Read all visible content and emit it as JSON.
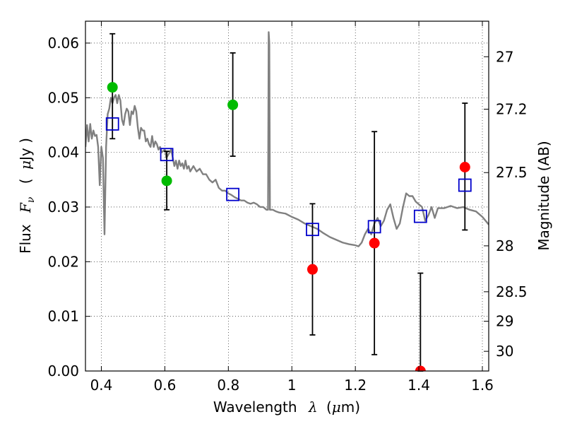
{
  "chart_data": {
    "type": "scatter",
    "xlabel_parts": [
      "Wavelength",
      "λ",
      "(",
      "μ",
      "m)"
    ],
    "ylabel_parts": [
      "Flux",
      "F",
      "ν",
      "(",
      "μ",
      "Jy )"
    ],
    "y2label": "Magnitude (AB)",
    "xlim": [
      0.35,
      1.62
    ],
    "ylim": [
      0.0,
      0.064
    ],
    "grid": true,
    "x_ticks": [
      {
        "value": 0.4,
        "label": "0.4"
      },
      {
        "value": 0.6,
        "label": "0.6"
      },
      {
        "value": 0.8,
        "label": "0.8"
      },
      {
        "value": 1.0,
        "label": "1"
      },
      {
        "value": 1.2,
        "label": "1.2"
      },
      {
        "value": 1.4,
        "label": "1.4"
      },
      {
        "value": 1.6,
        "label": "1.6"
      }
    ],
    "y_ticks": [
      {
        "value": 0.0,
        "label": "0.00"
      },
      {
        "value": 0.01,
        "label": "0.01"
      },
      {
        "value": 0.02,
        "label": "0.02"
      },
      {
        "value": 0.03,
        "label": "0.03"
      },
      {
        "value": 0.04,
        "label": "0.04"
      },
      {
        "value": 0.05,
        "label": "0.05"
      },
      {
        "value": 0.06,
        "label": "0.06"
      }
    ],
    "y2_ticks": [
      {
        "flux": 0.0575,
        "label": "27"
      },
      {
        "flux": 0.0479,
        "label": "27.2"
      },
      {
        "flux": 0.0363,
        "label": "27.5"
      },
      {
        "flux": 0.0229,
        "label": "28"
      },
      {
        "flux": 0.0145,
        "label": "28.5"
      },
      {
        "flux": 0.0091,
        "label": "29"
      },
      {
        "flux": 0.0036,
        "label": "30"
      }
    ],
    "series": [
      {
        "kind": "line",
        "color": "#808080",
        "points": [
          [
            0.35,
            0.041
          ],
          [
            0.355,
            0.045
          ],
          [
            0.36,
            0.042
          ],
          [
            0.365,
            0.0452
          ],
          [
            0.37,
            0.0425
          ],
          [
            0.375,
            0.044
          ],
          [
            0.38,
            0.043
          ],
          [
            0.385,
            0.0432
          ],
          [
            0.39,
            0.041
          ],
          [
            0.395,
            0.034
          ],
          [
            0.4,
            0.041
          ],
          [
            0.405,
            0.039
          ],
          [
            0.41,
            0.025
          ],
          [
            0.415,
            0.041
          ],
          [
            0.42,
            0.047
          ],
          [
            0.425,
            0.048
          ],
          [
            0.43,
            0.05
          ],
          [
            0.435,
            0.049
          ],
          [
            0.44,
            0.05
          ],
          [
            0.445,
            0.0505
          ],
          [
            0.45,
            0.049
          ],
          [
            0.455,
            0.0505
          ],
          [
            0.46,
            0.0495
          ],
          [
            0.465,
            0.046
          ],
          [
            0.47,
            0.045
          ],
          [
            0.475,
            0.047
          ],
          [
            0.48,
            0.048
          ],
          [
            0.485,
            0.0475
          ],
          [
            0.49,
            0.045
          ],
          [
            0.495,
            0.0475
          ],
          [
            0.5,
            0.047
          ],
          [
            0.505,
            0.0485
          ],
          [
            0.51,
            0.0475
          ],
          [
            0.515,
            0.0445
          ],
          [
            0.52,
            0.0425
          ],
          [
            0.525,
            0.0445
          ],
          [
            0.53,
            0.044
          ],
          [
            0.535,
            0.044
          ],
          [
            0.54,
            0.042
          ],
          [
            0.545,
            0.0425
          ],
          [
            0.55,
            0.0415
          ],
          [
            0.555,
            0.041
          ],
          [
            0.56,
            0.043
          ],
          [
            0.565,
            0.041
          ],
          [
            0.57,
            0.042
          ],
          [
            0.575,
            0.0415
          ],
          [
            0.58,
            0.0405
          ],
          [
            0.585,
            0.041
          ],
          [
            0.59,
            0.04
          ],
          [
            0.6,
            0.0405
          ],
          [
            0.605,
            0.039
          ],
          [
            0.61,
            0.0395
          ],
          [
            0.62,
            0.0405
          ],
          [
            0.625,
            0.039
          ],
          [
            0.63,
            0.0375
          ],
          [
            0.635,
            0.0385
          ],
          [
            0.64,
            0.037
          ],
          [
            0.645,
            0.0385
          ],
          [
            0.65,
            0.0375
          ],
          [
            0.655,
            0.038
          ],
          [
            0.66,
            0.037
          ],
          [
            0.665,
            0.0385
          ],
          [
            0.67,
            0.037
          ],
          [
            0.675,
            0.0375
          ],
          [
            0.68,
            0.0365
          ],
          [
            0.69,
            0.0375
          ],
          [
            0.7,
            0.0365
          ],
          [
            0.71,
            0.037
          ],
          [
            0.72,
            0.036
          ],
          [
            0.73,
            0.036
          ],
          [
            0.74,
            0.035
          ],
          [
            0.75,
            0.0345
          ],
          [
            0.76,
            0.035
          ],
          [
            0.77,
            0.0335
          ],
          [
            0.78,
            0.033
          ],
          [
            0.79,
            0.033
          ],
          [
            0.8,
            0.0325
          ],
          [
            0.81,
            0.0322
          ],
          [
            0.82,
            0.0318
          ],
          [
            0.83,
            0.0315
          ],
          [
            0.84,
            0.0312
          ],
          [
            0.85,
            0.0312
          ],
          [
            0.86,
            0.0308
          ],
          [
            0.87,
            0.0306
          ],
          [
            0.88,
            0.0308
          ],
          [
            0.89,
            0.0305
          ],
          [
            0.9,
            0.03
          ],
          [
            0.91,
            0.03
          ],
          [
            0.92,
            0.0295
          ],
          [
            0.925,
            0.0295
          ],
          [
            0.927,
            0.062
          ],
          [
            0.929,
            0.06
          ],
          [
            0.931,
            0.0295
          ],
          [
            0.94,
            0.0295
          ],
          [
            0.95,
            0.0292
          ],
          [
            0.96,
            0.029
          ],
          [
            0.98,
            0.0288
          ],
          [
            1.0,
            0.0282
          ],
          [
            1.02,
            0.0277
          ],
          [
            1.04,
            0.027
          ],
          [
            1.06,
            0.0265
          ],
          [
            1.08,
            0.026
          ],
          [
            1.1,
            0.0252
          ],
          [
            1.12,
            0.0245
          ],
          [
            1.14,
            0.024
          ],
          [
            1.16,
            0.0235
          ],
          [
            1.18,
            0.0232
          ],
          [
            1.2,
            0.023
          ],
          [
            1.21,
            0.0228
          ],
          [
            1.22,
            0.0235
          ],
          [
            1.23,
            0.025
          ],
          [
            1.24,
            0.026
          ],
          [
            1.25,
            0.025
          ],
          [
            1.26,
            0.027
          ],
          [
            1.27,
            0.028
          ],
          [
            1.28,
            0.0265
          ],
          [
            1.29,
            0.0275
          ],
          [
            1.3,
            0.0295
          ],
          [
            1.31,
            0.0305
          ],
          [
            1.32,
            0.028
          ],
          [
            1.33,
            0.026
          ],
          [
            1.34,
            0.027
          ],
          [
            1.35,
            0.03
          ],
          [
            1.36,
            0.0325
          ],
          [
            1.37,
            0.032
          ],
          [
            1.38,
            0.032
          ],
          [
            1.39,
            0.031
          ],
          [
            1.4,
            0.0305
          ],
          [
            1.41,
            0.03
          ],
          [
            1.42,
            0.0275
          ],
          [
            1.43,
            0.0285
          ],
          [
            1.44,
            0.03
          ],
          [
            1.45,
            0.028
          ],
          [
            1.46,
            0.0298
          ],
          [
            1.48,
            0.0298
          ],
          [
            1.5,
            0.0302
          ],
          [
            1.52,
            0.0298
          ],
          [
            1.54,
            0.03
          ],
          [
            1.56,
            0.0295
          ],
          [
            1.58,
            0.0292
          ],
          [
            1.6,
            0.0282
          ],
          [
            1.62,
            0.0268
          ]
        ]
      },
      {
        "kind": "errorbar",
        "color": "#000000",
        "points": [
          {
            "x": 0.435,
            "low": 0.0425,
            "high": 0.0617
          },
          {
            "x": 0.606,
            "low": 0.0295,
            "high": 0.0402
          },
          {
            "x": 0.814,
            "low": 0.0393,
            "high": 0.0582
          },
          {
            "x": 1.065,
            "low": 0.0066,
            "high": 0.0306
          },
          {
            "x": 1.26,
            "low": 0.003,
            "high": 0.0438
          },
          {
            "x": 1.405,
            "low": 0.0,
            "high": 0.0179
          },
          {
            "x": 1.545,
            "low": 0.0258,
            "high": 0.049
          }
        ]
      },
      {
        "kind": "circles",
        "color": "#00bb00",
        "points": [
          [
            0.435,
            0.0519
          ],
          [
            0.606,
            0.0348
          ],
          [
            0.814,
            0.0487
          ]
        ]
      },
      {
        "kind": "circles",
        "color": "#ff0000",
        "points": [
          [
            1.065,
            0.0186
          ],
          [
            1.26,
            0.0234
          ],
          [
            1.405,
            0.0
          ],
          [
            1.545,
            0.0373
          ]
        ]
      },
      {
        "kind": "squares",
        "color": "#0000cc",
        "points": [
          [
            0.435,
            0.0452
          ],
          [
            0.606,
            0.0396
          ],
          [
            0.814,
            0.0323
          ],
          [
            1.065,
            0.0259
          ],
          [
            1.26,
            0.0264
          ],
          [
            1.405,
            0.0283
          ],
          [
            1.545,
            0.034
          ]
        ]
      }
    ]
  }
}
